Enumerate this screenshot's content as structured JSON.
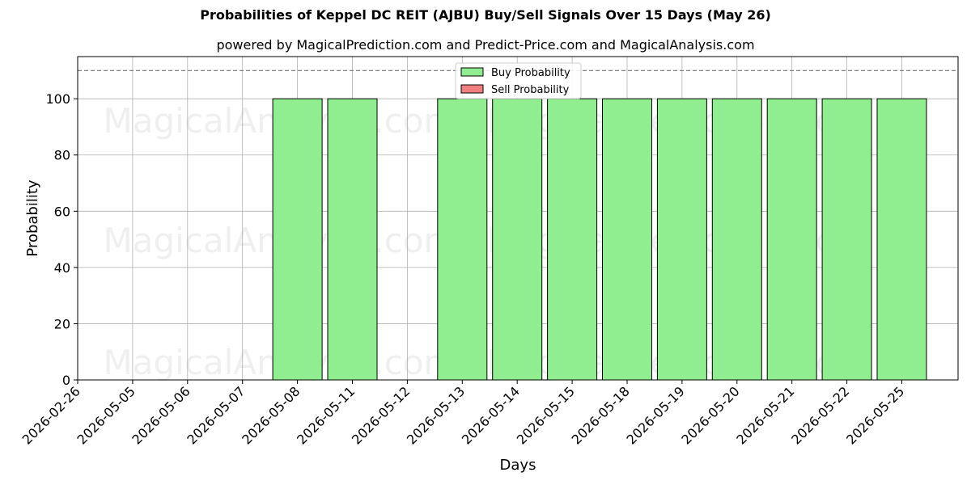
{
  "chart_data": {
    "type": "bar",
    "title": "Probabilities of Keppel DC REIT (AJBU) Buy/Sell Signals Over 15 Days (May 26)",
    "subtitle": "powered by MagicalPrediction.com and Predict-Price.com and MagicalAnalysis.com",
    "xlabel": "Days",
    "ylabel": "Probability",
    "ylim": [
      0,
      115
    ],
    "yticks": [
      0,
      20,
      40,
      60,
      80,
      100
    ],
    "reference_line": 110,
    "grid": true,
    "legend_position": "top-center",
    "categories": [
      "2026-02-26",
      "2026-05-05",
      "2026-05-06",
      "2026-05-07",
      "2026-05-08",
      "2026-05-11",
      "2026-05-12",
      "2026-05-13",
      "2026-05-14",
      "2026-05-15",
      "2026-05-18",
      "2026-05-19",
      "2026-05-20",
      "2026-05-21",
      "2026-05-22",
      "2026-05-25"
    ],
    "series": [
      {
        "name": "Buy Probability",
        "color": "#90ee90",
        "bars": [
          {
            "category": "2026-05-08",
            "value": 100
          },
          {
            "category": "2026-05-11",
            "value": 100
          },
          {
            "category": "2026-05-13",
            "value": 100
          },
          {
            "category": "2026-05-14",
            "value": 100
          },
          {
            "category": "2026-05-15",
            "value": 100
          },
          {
            "category": "2026-05-18",
            "value": 100
          },
          {
            "category": "2026-05-19",
            "value": 100
          },
          {
            "category": "2026-05-20",
            "value": 100
          },
          {
            "category": "2026-05-21",
            "value": 100
          },
          {
            "category": "2026-05-22",
            "value": 100
          },
          {
            "category": "2026-05-25",
            "value": 100
          }
        ]
      },
      {
        "name": "Sell Probability",
        "color": "#f08080",
        "bars": []
      }
    ],
    "watermarks": [
      "MagicalAnalysis.com",
      "MagicalPrediction.com"
    ]
  }
}
